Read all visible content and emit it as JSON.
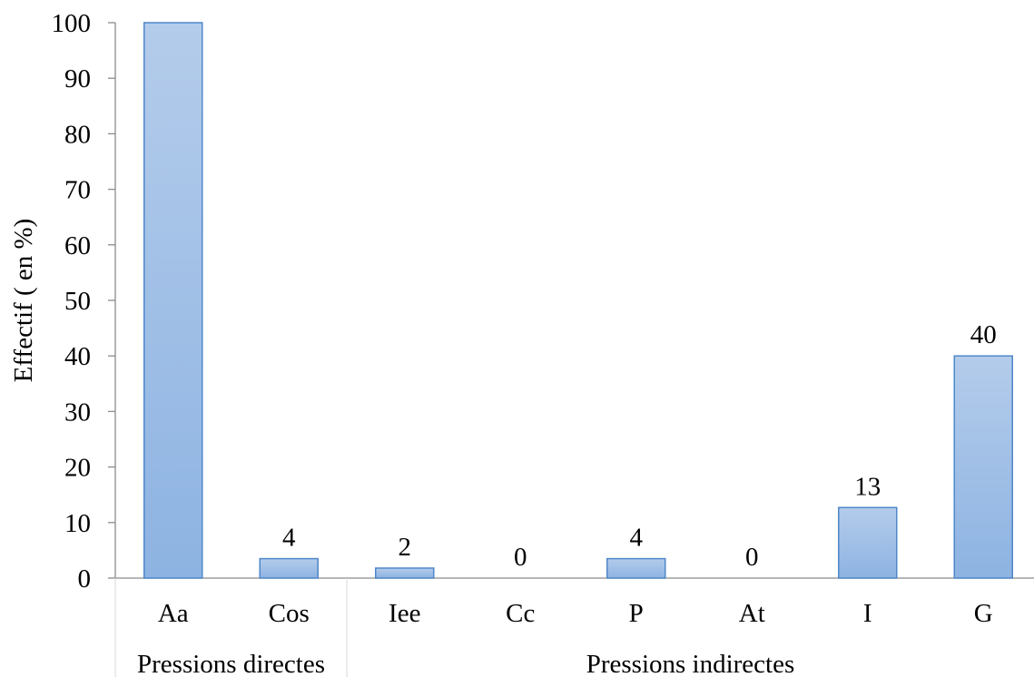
{
  "chart_data": {
    "type": "bar",
    "title": "",
    "ylabel": "Effectif ( en %)",
    "xlabel": "",
    "ylim": [
      0,
      100
    ],
    "yticks": [
      0,
      10,
      20,
      30,
      40,
      50,
      60,
      70,
      80,
      90,
      100
    ],
    "categories": [
      "Aa",
      "Cos",
      "Iee",
      "Cc",
      "P",
      "At",
      "I",
      "G"
    ],
    "values": [
      100,
      3.5,
      1.8,
      0,
      3.5,
      0,
      12.7,
      40
    ],
    "data_labels": [
      "",
      "4",
      "2",
      "0",
      "4",
      "0",
      "13",
      "40"
    ],
    "groups": [
      {
        "label": "Pressions directes",
        "categories": [
          "Aa",
          "Cos"
        ]
      },
      {
        "label": "Pressions indirectes",
        "categories": [
          "Iee",
          "Cc",
          "P",
          "At",
          "I",
          "G"
        ]
      }
    ],
    "grid": false,
    "colors": {
      "bar_top": "#b4cceb",
      "bar_bottom": "#8db3e2",
      "bar_border": "#4f87c9",
      "axis": "#8c8c8c"
    }
  }
}
